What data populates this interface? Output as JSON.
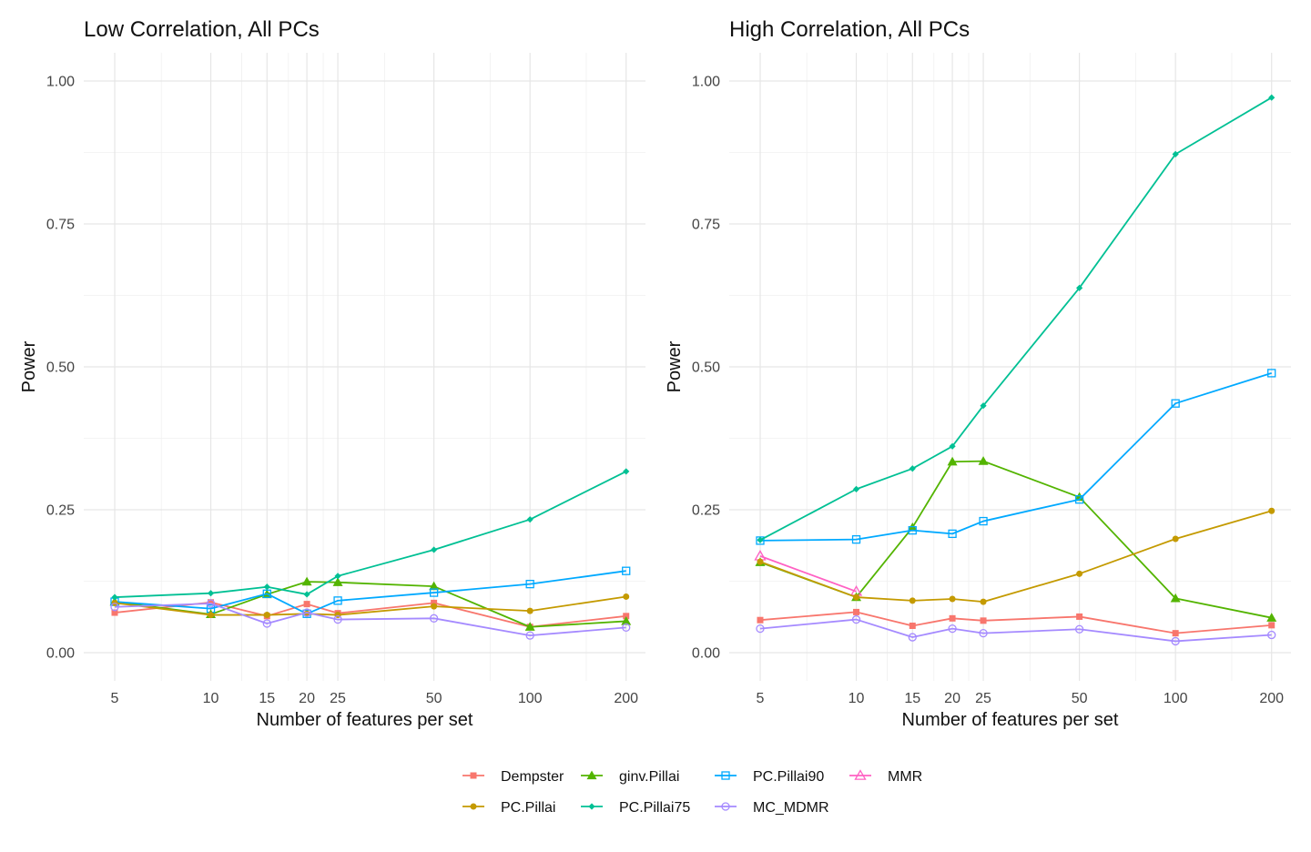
{
  "chart_data": [
    {
      "type": "line",
      "title": "Low Correlation, All PCs",
      "xlabel": "Number of features per set",
      "ylabel": "Power",
      "x_scale": "log",
      "x": [
        5,
        10,
        15,
        20,
        25,
        50,
        100,
        200
      ],
      "xticks": [
        "5",
        "10",
        "15",
        "20",
        "25",
        "50",
        "100",
        "200"
      ],
      "yticks": [
        "0.00",
        "0.25",
        "0.50",
        "0.75",
        "1.00"
      ],
      "ylim": [
        0,
        1
      ],
      "grid": true,
      "series": [
        {
          "name": "Dempster",
          "values": [
            0.07,
            0.088,
            0.064,
            0.085,
            0.069,
            0.087,
            0.045,
            0.064
          ]
        },
        {
          "name": "ginv.Pillai",
          "values": [
            0.089,
            0.067,
            0.102,
            0.124,
            0.123,
            0.116,
            0.045,
            0.055
          ]
        },
        {
          "name": "PC.Pillai90",
          "values": [
            0.089,
            0.077,
            0.103,
            0.068,
            0.091,
            0.105,
            0.12,
            0.143
          ]
        },
        {
          "name": "MMR",
          "values": [
            null,
            null,
            null,
            null,
            null,
            null,
            null,
            null
          ]
        },
        {
          "name": "PC.Pillai",
          "values": [
            0.087,
            0.066,
            0.066,
            0.068,
            0.066,
            0.081,
            0.073,
            0.098
          ]
        },
        {
          "name": "PC.Pillai75",
          "values": [
            0.097,
            0.104,
            0.115,
            0.102,
            0.134,
            0.18,
            0.233,
            0.317
          ]
        },
        {
          "name": "MC_MDMR",
          "values": [
            0.08,
            0.086,
            0.051,
            0.07,
            0.058,
            0.06,
            0.03,
            0.044
          ]
        }
      ]
    },
    {
      "type": "line",
      "title": "High Correlation, All PCs",
      "xlabel": "Number of features per set",
      "ylabel": "Power",
      "x_scale": "log",
      "x": [
        5,
        10,
        15,
        20,
        25,
        50,
        100,
        200
      ],
      "xticks": [
        "5",
        "10",
        "15",
        "20",
        "25",
        "50",
        "100",
        "200"
      ],
      "yticks": [
        "0.00",
        "0.25",
        "0.50",
        "0.75",
        "1.00"
      ],
      "ylim": [
        0,
        1
      ],
      "grid": true,
      "series": [
        {
          "name": "Dempster",
          "values": [
            0.057,
            0.071,
            0.047,
            0.06,
            0.056,
            0.063,
            0.034,
            0.048
          ]
        },
        {
          "name": "ginv.Pillai",
          "values": [
            0.158,
            0.097,
            0.219,
            0.334,
            0.335,
            0.272,
            0.095,
            0.061
          ]
        },
        {
          "name": "PC.Pillai90",
          "values": [
            0.196,
            0.198,
            0.214,
            0.208,
            0.23,
            0.268,
            0.436,
            0.489
          ]
        },
        {
          "name": "MMR",
          "values": [
            0.169,
            0.107,
            null,
            null,
            null,
            null,
            null,
            null
          ]
        },
        {
          "name": "PC.Pillai",
          "values": [
            0.159,
            0.097,
            0.091,
            0.094,
            0.089,
            0.138,
            0.199,
            0.248
          ]
        },
        {
          "name": "PC.Pillai75",
          "values": [
            0.197,
            0.286,
            0.322,
            0.361,
            0.432,
            0.638,
            0.872,
            0.971
          ]
        },
        {
          "name": "MC_MDMR",
          "values": [
            0.042,
            0.058,
            0.027,
            0.042,
            0.034,
            0.041,
            0.02,
            0.031
          ]
        }
      ]
    }
  ],
  "legend": {
    "placement": "bottom",
    "items": [
      {
        "name": "Dempster",
        "color": "#F8766D",
        "marker": "filled-square"
      },
      {
        "name": "ginv.Pillai",
        "color": "#53B400",
        "marker": "filled-triangle"
      },
      {
        "name": "PC.Pillai90",
        "color": "#00A9FF",
        "marker": "open-square"
      },
      {
        "name": "MMR",
        "color": "#FF61C3",
        "marker": "open-triangle"
      },
      {
        "name": "PC.Pillai",
        "color": "#C49A00",
        "marker": "filled-circle"
      },
      {
        "name": "PC.Pillai75",
        "color": "#00C094",
        "marker": "filled-diamond"
      },
      {
        "name": "MC_MDMR",
        "color": "#A58AFF",
        "marker": "open-circle"
      }
    ]
  }
}
